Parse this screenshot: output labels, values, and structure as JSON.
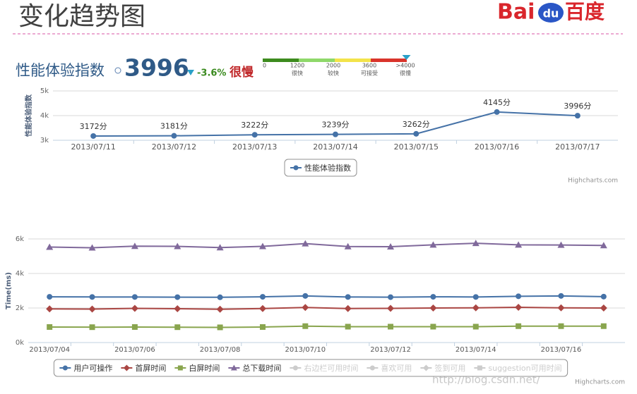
{
  "header": {
    "title": "变化趋势图",
    "logo": {
      "latin": "Bai",
      "paw": "du",
      "cn": "百度"
    },
    "metric": "性能体验指数",
    "score": 3996,
    "change": "-3.6%",
    "grade": "很慢",
    "scale": {
      "ticks": [
        0,
        1200,
        2000,
        3600,
        {
          "value": 4000,
          "label": ">4000"
        }
      ],
      "grades": [
        "很快",
        "较快",
        "可接受",
        "很慢"
      ],
      "colors": [
        "#3d8b1e",
        "#8fd86a",
        "#f3e34a",
        "#d9342b"
      ]
    },
    "watermark": "http://blog.csdn.net/"
  },
  "chart_data": [
    {
      "type": "line",
      "ylabel": "性能体验指数",
      "categories": [
        "2013/07/11",
        "2013/07/12",
        "2013/07/13",
        "2013/07/14",
        "2013/07/15",
        "2013/07/16",
        "2013/07/17"
      ],
      "series": [
        {
          "name": "性能体验指数",
          "color": "#4572a7",
          "marker": "circle",
          "values": [
            3172,
            3181,
            3222,
            3239,
            3262,
            4145,
            3996
          ],
          "value_labels": [
            "3172分",
            "3181分",
            "3222分",
            "3239分",
            "3262分",
            "4145分",
            "3996分"
          ]
        }
      ],
      "ylim": [
        3000,
        5000
      ],
      "yticks": [
        {
          "value": 3000,
          "label": "3k"
        },
        {
          "value": 4000,
          "label": "4k"
        },
        {
          "value": 5000,
          "label": "5k"
        }
      ],
      "grid": true,
      "legend": "bottom",
      "credits": "Highcharts.com"
    },
    {
      "type": "line",
      "ylabel": "Time(ms)",
      "categories": [
        "2013/07/04",
        null,
        "2013/07/06",
        null,
        "2013/07/08",
        null,
        "2013/07/10",
        null,
        "2013/07/12",
        null,
        "2013/07/14",
        null,
        "2013/07/16",
        null
      ],
      "series": [
        {
          "name": "用户可操作",
          "color": "#4572a7",
          "marker": "circle",
          "values": [
            2650,
            2640,
            2640,
            2630,
            2620,
            2650,
            2700,
            2640,
            2630,
            2650,
            2640,
            2680,
            2700,
            2660
          ]
        },
        {
          "name": "首屏时间",
          "color": "#aa4643",
          "marker": "diamond",
          "values": [
            1950,
            1940,
            1980,
            1960,
            1930,
            1970,
            2030,
            1970,
            1980,
            2000,
            2010,
            2040,
            2010,
            2000
          ]
        },
        {
          "name": "白屏时间",
          "color": "#89a54e",
          "marker": "square",
          "values": [
            900,
            890,
            900,
            890,
            880,
            900,
            950,
            920,
            920,
            920,
            920,
            950,
            950,
            950
          ]
        },
        {
          "name": "总下载时间",
          "color": "#80699b",
          "marker": "triangle",
          "values": [
            5530,
            5490,
            5580,
            5570,
            5500,
            5570,
            5730,
            5560,
            5550,
            5660,
            5750,
            5660,
            5650,
            5620
          ]
        }
      ],
      "hidden_series": [
        {
          "name": "右边栏可用时间",
          "marker": "circle"
        },
        {
          "name": "喜欢可用",
          "marker": "circle"
        },
        {
          "name": "签到可用",
          "marker": "diamond"
        },
        {
          "name": "suggestion可用时间",
          "marker": "square"
        }
      ],
      "ylim": [
        0,
        6000
      ],
      "yticks": [
        {
          "value": 0,
          "label": "0k"
        },
        {
          "value": 2000,
          "label": "2k"
        },
        {
          "value": 4000,
          "label": "4k"
        },
        {
          "value": 6000,
          "label": "6k"
        }
      ],
      "grid": true,
      "legend": "bottom",
      "credits": "Highcharts.com"
    }
  ]
}
